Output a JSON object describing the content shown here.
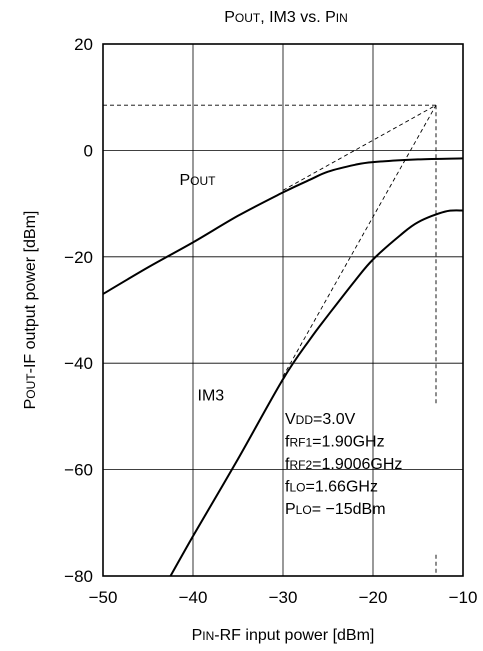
{
  "chart_data": {
    "type": "line",
    "title": {
      "main": "P",
      "main_sc": "OUT",
      "rest": ", IM3 vs. P",
      "rest_sc": "IN"
    },
    "xlabel": {
      "main": "P",
      "sc": "IN",
      "rest": "-RF input power [dBm]"
    },
    "ylabel": {
      "main": "P",
      "sc": "OUT",
      "rest": "-IF output power [dBm]"
    },
    "xlim": [
      -50,
      -10
    ],
    "ylim": [
      -80,
      20
    ],
    "x_ticks": [
      -50,
      -40,
      -30,
      -20,
      -10
    ],
    "x_tick_labels": [
      "−50",
      "−40",
      "−30",
      "−20",
      "−10"
    ],
    "y_ticks": [
      20,
      0,
      -20,
      -40,
      -60,
      -80
    ],
    "y_tick_labels": [
      "20",
      "0",
      "−20",
      "−40",
      "−60",
      "−80"
    ],
    "grid": true,
    "series": [
      {
        "name": "Pout",
        "label": {
          "main": "P",
          "sc": "OUT"
        },
        "style": "solid",
        "points": [
          [
            -50,
            -27
          ],
          [
            -45,
            -22
          ],
          [
            -40,
            -17.3
          ],
          [
            -35,
            -12.3
          ],
          [
            -30,
            -7.9
          ],
          [
            -27,
            -5.5
          ],
          [
            -25,
            -4
          ],
          [
            -22,
            -2.7
          ],
          [
            -20,
            -2.2
          ],
          [
            -15,
            -1.7
          ],
          [
            -10,
            -1.5
          ]
        ]
      },
      {
        "name": "IM3",
        "label": {
          "main": "IM3",
          "sc": ""
        },
        "style": "solid",
        "points": [
          [
            -42.5,
            -80
          ],
          [
            -40,
            -72.5
          ],
          [
            -35,
            -58
          ],
          [
            -30,
            -43
          ],
          [
            -27,
            -35.5
          ],
          [
            -25,
            -31
          ],
          [
            -22,
            -24.5
          ],
          [
            -20,
            -20.5
          ],
          [
            -17,
            -16
          ],
          [
            -15,
            -13.5
          ],
          [
            -12,
            -11.5
          ],
          [
            -10,
            -11.3
          ]
        ]
      }
    ],
    "annotations": [
      {
        "role": "extrapolation",
        "style": "dashed",
        "points": [
          [
            -30,
            -7.5
          ],
          [
            -13,
            8.5
          ]
        ]
      },
      {
        "role": "extrapolation",
        "style": "dashed",
        "points": [
          [
            -30,
            -42.5
          ],
          [
            -13,
            8.5
          ]
        ]
      },
      {
        "role": "intercept-horizontal",
        "style": "dashed",
        "points": [
          [
            -50,
            8.5
          ],
          [
            -13,
            8.5
          ]
        ]
      },
      {
        "role": "intercept-vertical",
        "style": "dashed",
        "points": [
          [
            -13,
            8.5
          ],
          [
            -13,
            -48
          ]
        ]
      },
      {
        "role": "intercept-vertical-tail",
        "style": "dashed",
        "points": [
          [
            -13,
            -76
          ],
          [
            -13,
            -80
          ]
        ]
      }
    ],
    "conditions": [
      {
        "main": "V",
        "sc": "DD",
        "rest": "=3.0V"
      },
      {
        "main": "f",
        "sc": "RF1",
        "rest": "=1.90GHz"
      },
      {
        "main": "f",
        "sc": "RF2",
        "rest": "=1.9006GHz"
      },
      {
        "main": "f",
        "sc": "LO",
        "rest": "=1.66GHz"
      },
      {
        "main": "P",
        "sc": "LO",
        "rest": "= −15dBm"
      }
    ]
  }
}
